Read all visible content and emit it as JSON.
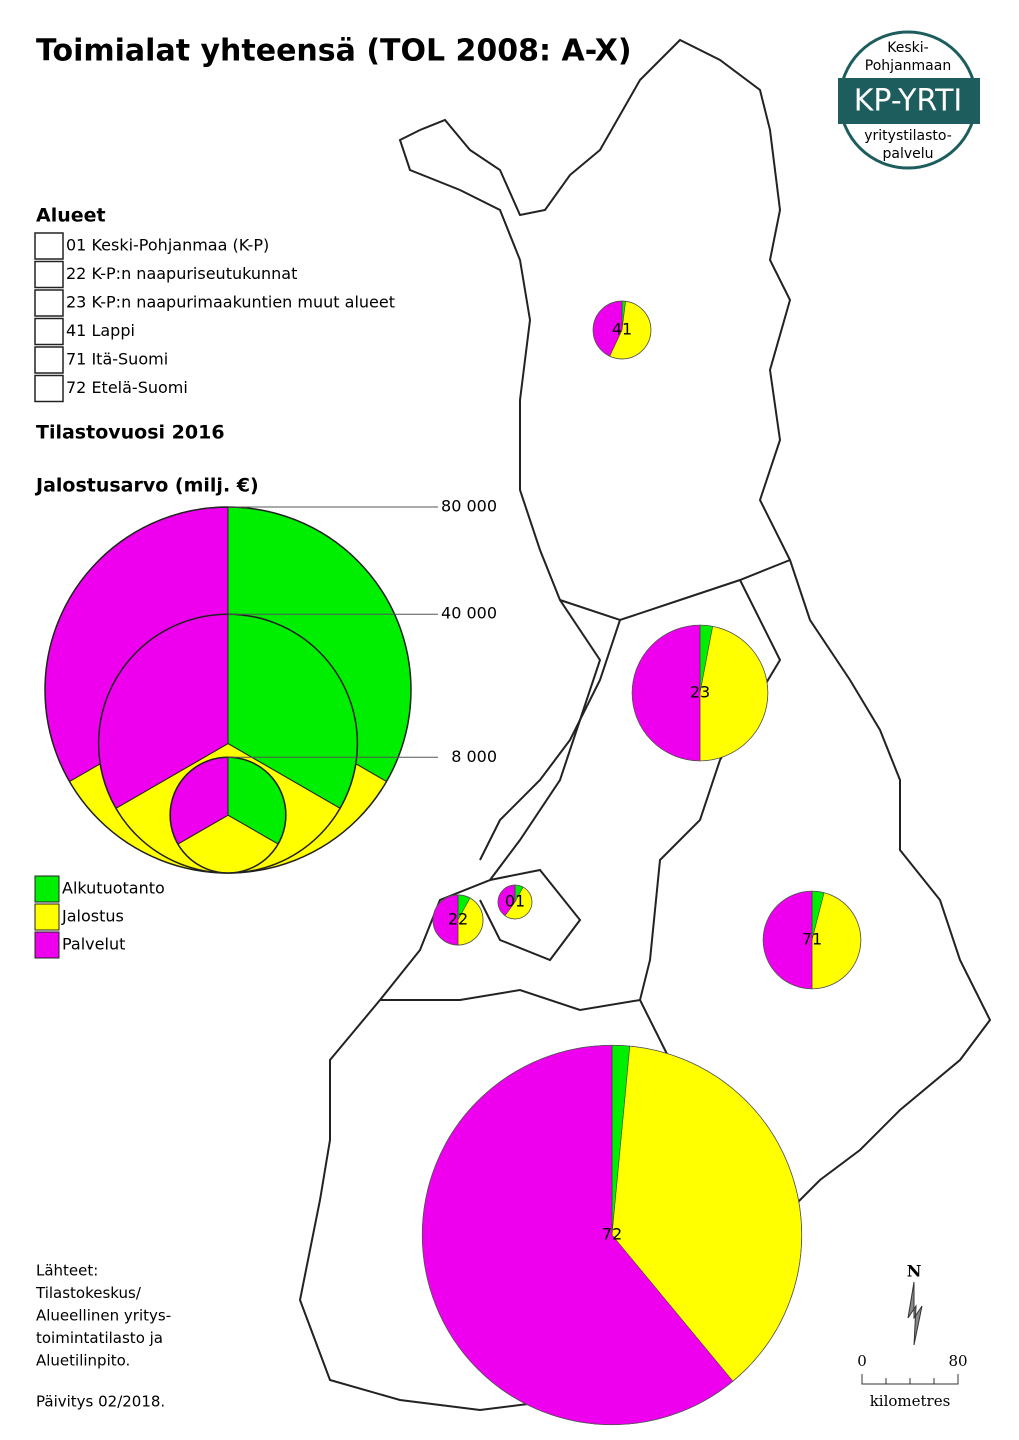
{
  "title": "Toimialat yhteensä (TOL 2008: A-X)",
  "logo": {
    "top": [
      "Keski-",
      "Pohjanmaan"
    ],
    "name": "KP-YRTI",
    "bottom": [
      "yritystilasto-",
      "palvelu"
    ]
  },
  "regions_legend": {
    "title": "Alueet",
    "items": [
      "01 Keski-Pohjanmaa (K-P)",
      "22 K-P:n naapuriseutukunnat",
      "23 K-P:n naapurimaakuntien muut alueet",
      "41 Lappi",
      "71 Itä-Suomi",
      "72 Etelä-Suomi"
    ]
  },
  "year": "Tilastovuosi 2016",
  "size_legend": {
    "title": "Jalostusarvo (milj. €)",
    "ticks": [
      {
        "value": 80000,
        "label": "80 000"
      },
      {
        "value": 40000,
        "label": "40 000"
      },
      {
        "value": 8000,
        "label": "8 000"
      }
    ]
  },
  "sectors": [
    {
      "name": "Alkutuotanto",
      "color": "#00ee00"
    },
    {
      "name": "Jalostus",
      "color": "#ffff00"
    },
    {
      "name": "Palvelut",
      "color": "#ee00ee"
    }
  ],
  "pies": [
    {
      "label": "41",
      "total": 2000,
      "values": [
        2,
        55,
        43
      ]
    },
    {
      "label": "23",
      "total": 11000,
      "values": [
        3,
        47,
        50
      ]
    },
    {
      "label": "71",
      "total": 5700,
      "values": [
        4,
        46,
        50
      ]
    },
    {
      "label": "22",
      "total": 1500,
      "values": [
        8,
        42,
        50
      ]
    },
    {
      "label": "01",
      "total": 690,
      "values": [
        8,
        52,
        40
      ]
    },
    {
      "label": "72",
      "total": 86000,
      "values": [
        1.5,
        37.5,
        61
      ]
    }
  ],
  "sources": [
    "Lähteet:",
    "Tilastokeskus/",
    "Alueellinen yritys-",
    "toimintatilasto ja",
    "Aluetilinpito."
  ],
  "update": "Päivitys 02/2018.",
  "north": "N",
  "scale_bar": {
    "start": "0",
    "end": "80",
    "unit": "kilometres"
  }
}
